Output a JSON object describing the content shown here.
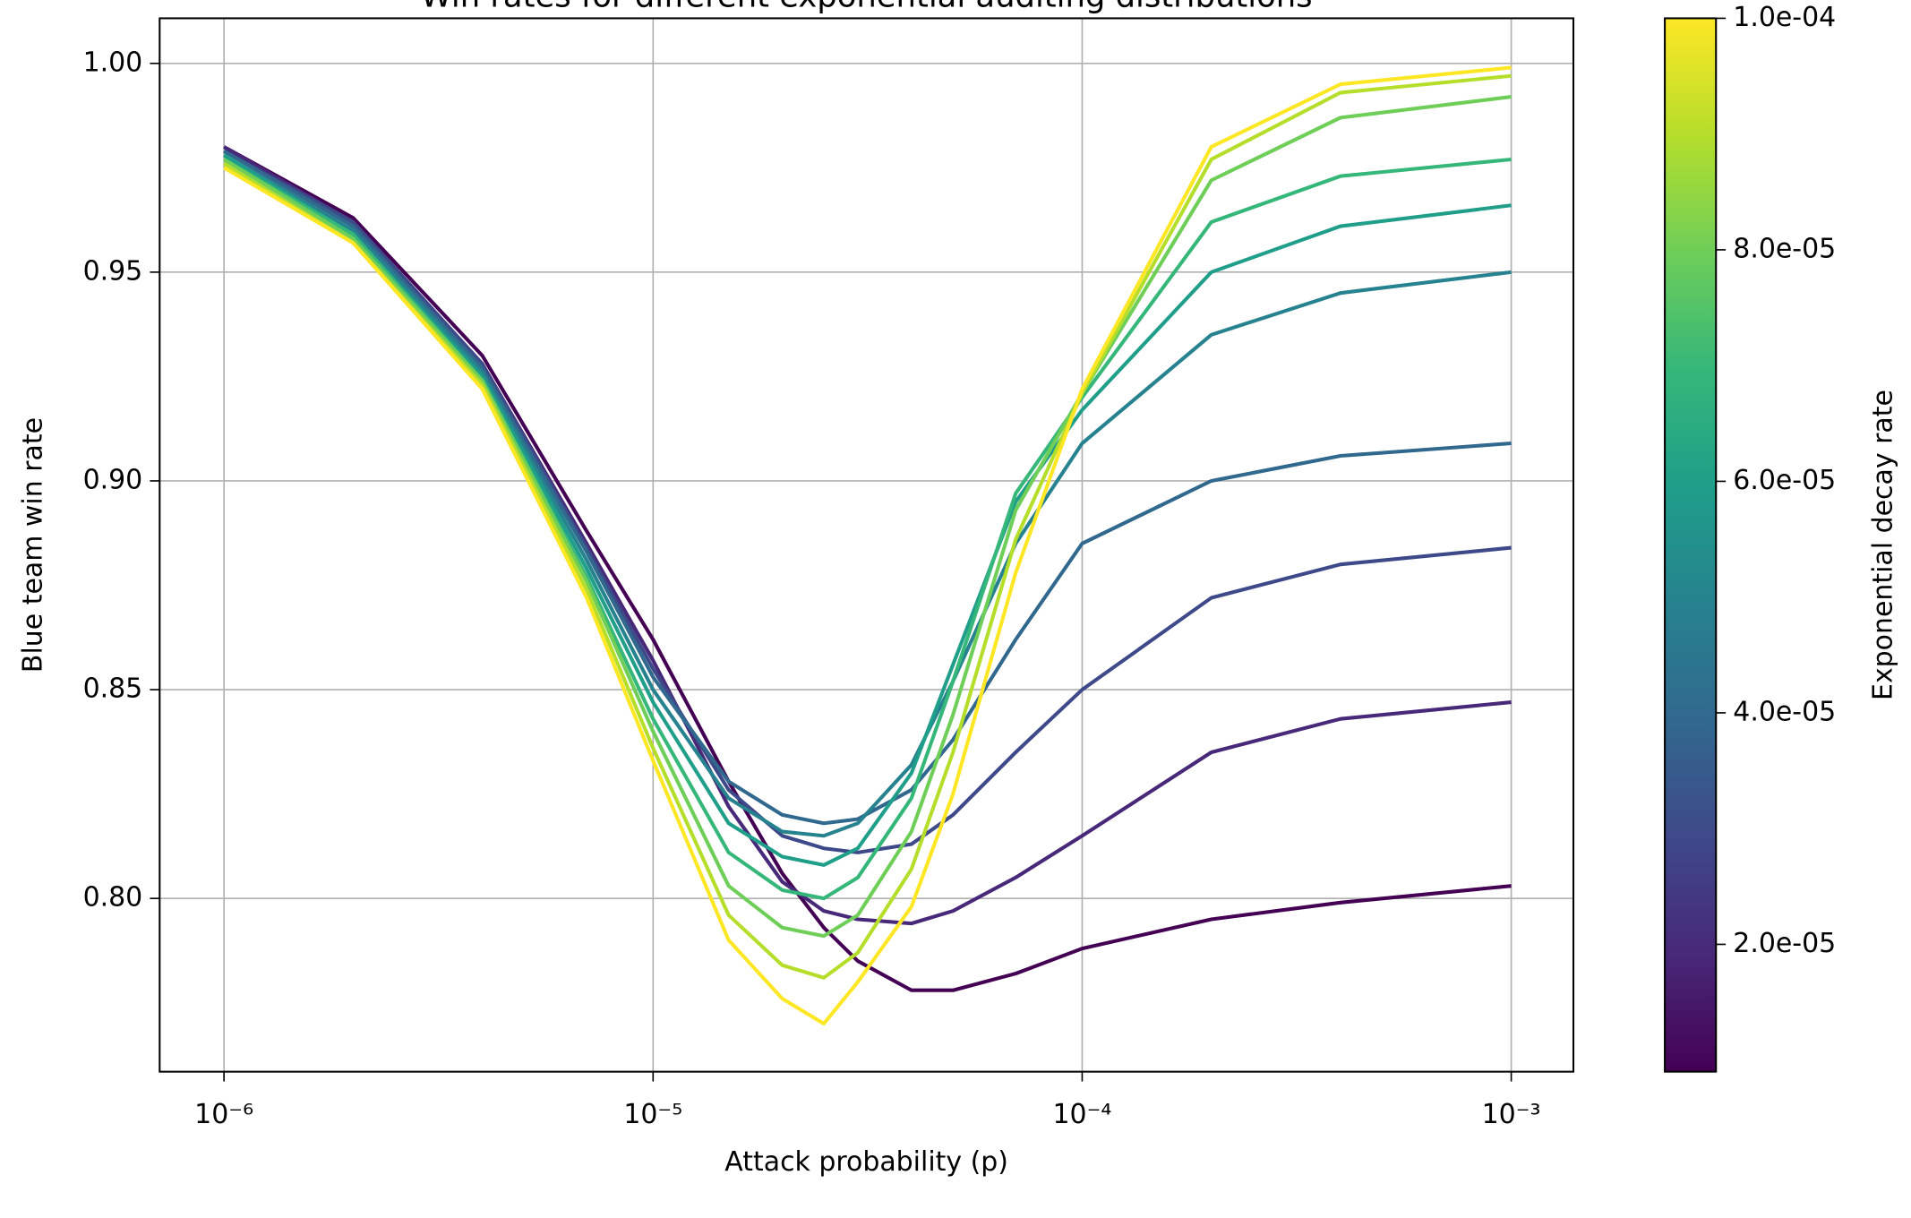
{
  "chart_data": {
    "type": "line",
    "title": "Win rates for different exponential auditing distributions",
    "x_label": "Attack probability (p)",
    "y_label": "Blue team win rate",
    "x_scale": "log",
    "grid": true,
    "x": [
      1e-06,
      2e-06,
      4e-06,
      7e-06,
      1e-05,
      1.5e-05,
      2e-05,
      2.5e-05,
      3e-05,
      4e-05,
      5e-05,
      7e-05,
      0.0001,
      0.0002,
      0.0004,
      0.001
    ],
    "xlim": [
      7.08e-07,
      0.001396
    ],
    "xticks": [
      {
        "value": 1e-06,
        "label": "10⁻⁶"
      },
      {
        "value": 1e-05,
        "label": "10⁻⁵"
      },
      {
        "value": 0.0001,
        "label": "10⁻⁴"
      },
      {
        "value": 0.001,
        "label": "10⁻³"
      }
    ],
    "ylim": [
      0.7585,
      1.0108
    ],
    "yticks": [
      {
        "value": 0.8,
        "label": "0.80"
      },
      {
        "value": 0.85,
        "label": "0.85"
      },
      {
        "value": 0.9,
        "label": "0.90"
      },
      {
        "value": 0.95,
        "label": "0.95"
      },
      {
        "value": 1.0,
        "label": "1.00"
      }
    ],
    "series": [
      {
        "color": "#440154",
        "values": [
          0.98,
          0.963,
          0.93,
          0.888,
          0.862,
          0.828,
          0.806,
          0.793,
          0.785,
          0.778,
          0.778,
          0.782,
          0.788,
          0.795,
          0.799,
          0.803
        ]
      },
      {
        "color": "#482878",
        "values": [
          0.98,
          0.962,
          0.928,
          0.885,
          0.857,
          0.822,
          0.804,
          0.797,
          0.795,
          0.794,
          0.797,
          0.805,
          0.815,
          0.835,
          0.843,
          0.847
        ]
      },
      {
        "color": "#3e4989",
        "values": [
          0.979,
          0.962,
          0.928,
          0.884,
          0.855,
          0.826,
          0.815,
          0.812,
          0.811,
          0.813,
          0.82,
          0.835,
          0.85,
          0.872,
          0.88,
          0.884
        ]
      },
      {
        "color": "#31688e",
        "values": [
          0.979,
          0.961,
          0.927,
          0.883,
          0.853,
          0.828,
          0.82,
          0.818,
          0.819,
          0.826,
          0.838,
          0.862,
          0.885,
          0.9,
          0.906,
          0.909
        ]
      },
      {
        "color": "#26828e",
        "values": [
          0.978,
          0.96,
          0.926,
          0.881,
          0.85,
          0.824,
          0.816,
          0.815,
          0.818,
          0.832,
          0.852,
          0.885,
          0.909,
          0.935,
          0.945,
          0.95
        ]
      },
      {
        "color": "#1f9e89",
        "values": [
          0.978,
          0.959,
          0.925,
          0.879,
          0.847,
          0.818,
          0.81,
          0.808,
          0.812,
          0.83,
          0.856,
          0.895,
          0.917,
          0.95,
          0.961,
          0.966
        ]
      },
      {
        "color": "#35b779",
        "values": [
          0.977,
          0.959,
          0.924,
          0.877,
          0.843,
          0.811,
          0.802,
          0.8,
          0.805,
          0.824,
          0.852,
          0.897,
          0.92,
          0.962,
          0.973,
          0.977
        ]
      },
      {
        "color": "#6ece58",
        "values": [
          0.977,
          0.958,
          0.924,
          0.876,
          0.84,
          0.803,
          0.793,
          0.791,
          0.796,
          0.816,
          0.844,
          0.893,
          0.921,
          0.972,
          0.987,
          0.992
        ]
      },
      {
        "color": "#b5de2b",
        "values": [
          0.976,
          0.957,
          0.923,
          0.874,
          0.836,
          0.796,
          0.784,
          0.781,
          0.787,
          0.807,
          0.835,
          0.886,
          0.921,
          0.977,
          0.993,
          0.997
        ]
      },
      {
        "color": "#fde725",
        "values": [
          0.975,
          0.957,
          0.922,
          0.872,
          0.833,
          0.79,
          0.776,
          0.77,
          0.78,
          0.798,
          0.825,
          0.878,
          0.922,
          0.98,
          0.995,
          0.999
        ]
      }
    ],
    "colorbar": {
      "label": "Exponential decay rate",
      "lim": [
        9e-06,
        0.0001
      ],
      "colors": [
        "#440154",
        "#482878",
        "#3e4989",
        "#31688e",
        "#26828e",
        "#1f9e89",
        "#35b779",
        "#6ece58",
        "#b5de2b",
        "#fde725"
      ],
      "ticks": [
        {
          "value": 2e-05,
          "label": "2.0e-05"
        },
        {
          "value": 4e-05,
          "label": "4.0e-05"
        },
        {
          "value": 6e-05,
          "label": "6.0e-05"
        },
        {
          "value": 8e-05,
          "label": "8.0e-05"
        },
        {
          "value": 0.0001,
          "label": "1.0e-04"
        }
      ]
    }
  }
}
